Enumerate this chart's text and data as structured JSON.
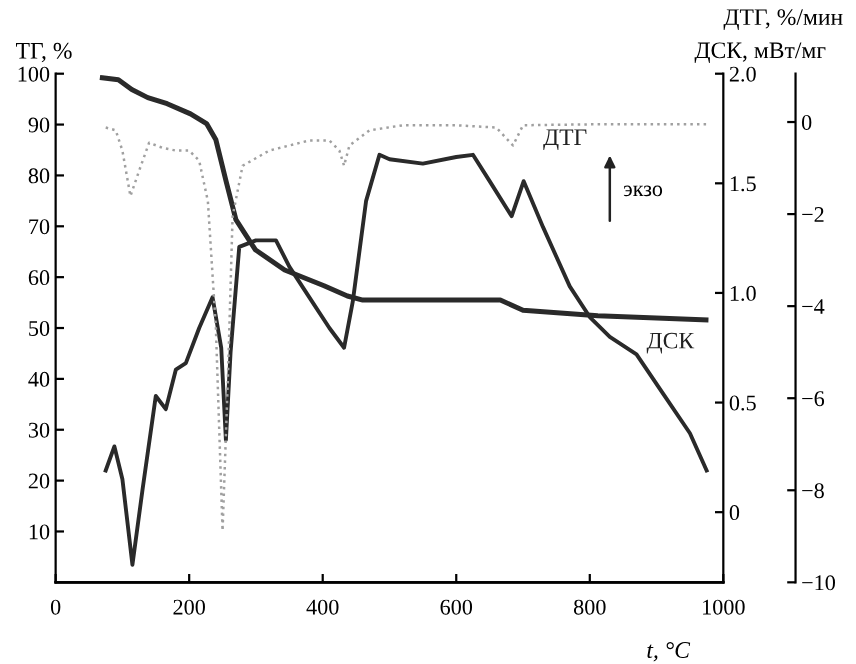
{
  "chart_data": {
    "type": "line",
    "xlabel": "t, °C",
    "ylabel": "ТГ, %",
    "y2label": "ДСК, мВт/мг",
    "y3label": "ДТГ, %/мин",
    "xlim": [
      0,
      1000
    ],
    "xticks": [
      0,
      200,
      400,
      600,
      800,
      1000
    ],
    "ylim": [
      0,
      100
    ],
    "yticks": [
      10,
      20,
      30,
      40,
      50,
      60,
      70,
      80,
      90,
      100
    ],
    "y2lim": [
      -0.32,
      2.0
    ],
    "y2ticks": [
      0,
      0.5,
      {
        "value": 1.0,
        "label": "1.0"
      },
      1.5,
      {
        "value": 2.0,
        "label": "2.0"
      }
    ],
    "y3lim": [
      -10,
      1.05
    ],
    "y3ticks": [
      0,
      {
        "value": -2,
        "label": "−2"
      },
      {
        "value": -4,
        "label": "−4"
      },
      {
        "value": -6,
        "label": "−6"
      },
      {
        "value": -8,
        "label": "−8"
      },
      {
        "value": -10,
        "label": "−10"
      }
    ],
    "annotations": [
      "экзо"
    ],
    "series": [
      {
        "color": "#2a2a2a",
        "line_style": "solid",
        "x": [
          70,
          94,
          114,
          138,
          167,
          202,
          226,
          240,
          255,
          270,
          299,
          343,
          402,
          437,
          460,
          666,
          700,
          812,
          974
        ],
        "values": [
          99.2,
          98.8,
          96.9,
          95.3,
          94.1,
          92.1,
          90.2,
          87,
          79,
          71.3,
          65.4,
          61.4,
          58.3,
          56.3,
          55.5,
          55.5,
          53.5,
          52.4,
          51.6
        ]
      },
      {
        "name": "ДТГ",
        "axis": "y3",
        "color": "#a0a0a0",
        "line_style": "dotted",
        "x": [
          75,
          90,
          100,
          112,
          125,
          140,
          160,
          180,
          200,
          215,
          228,
          240,
          250,
          258,
          265,
          280,
          320,
          380,
          410,
          425,
          432,
          440,
          470,
          520,
          600,
          660,
          685,
          700,
          800,
          975
        ],
        "values": [
          -0.12,
          -0.18,
          -0.62,
          -1.61,
          -1.06,
          -0.45,
          -0.56,
          -0.62,
          -0.62,
          -0.84,
          -1.72,
          -4.47,
          -8.88,
          -5.57,
          -2.05,
          -0.95,
          -0.62,
          -0.4,
          -0.4,
          -0.62,
          -0.95,
          -0.51,
          -0.18,
          -0.07,
          -0.07,
          -0.12,
          -0.51,
          -0.07,
          -0.05,
          -0.05
        ]
      },
      {
        "name": "ДСК",
        "axis": "y2",
        "color": "#2a2a2a",
        "line_style": "solid",
        "x": [
          75,
          88,
          100,
          115,
          130,
          150,
          165,
          180,
          195,
          215,
          235,
          248,
          255,
          262,
          275,
          300,
          330,
          350,
          380,
          410,
          432,
          445,
          465,
          485,
          500,
          550,
          600,
          625,
          650,
          683,
          701,
          730,
          770,
          800,
          830,
          870,
          910,
          950,
          975
        ],
        "values": [
          0.19,
          0.3,
          0.15,
          -0.24,
          0.1,
          0.53,
          0.47,
          0.65,
          0.68,
          0.84,
          0.98,
          0.75,
          0.33,
          0.73,
          1.21,
          1.24,
          1.24,
          1.12,
          0.98,
          0.84,
          0.75,
          0.96,
          1.42,
          1.63,
          1.61,
          1.59,
          1.62,
          1.63,
          1.51,
          1.35,
          1.51,
          1.3,
          1.03,
          0.89,
          0.8,
          0.72,
          0.54,
          0.36,
          0.19
        ]
      }
    ]
  }
}
